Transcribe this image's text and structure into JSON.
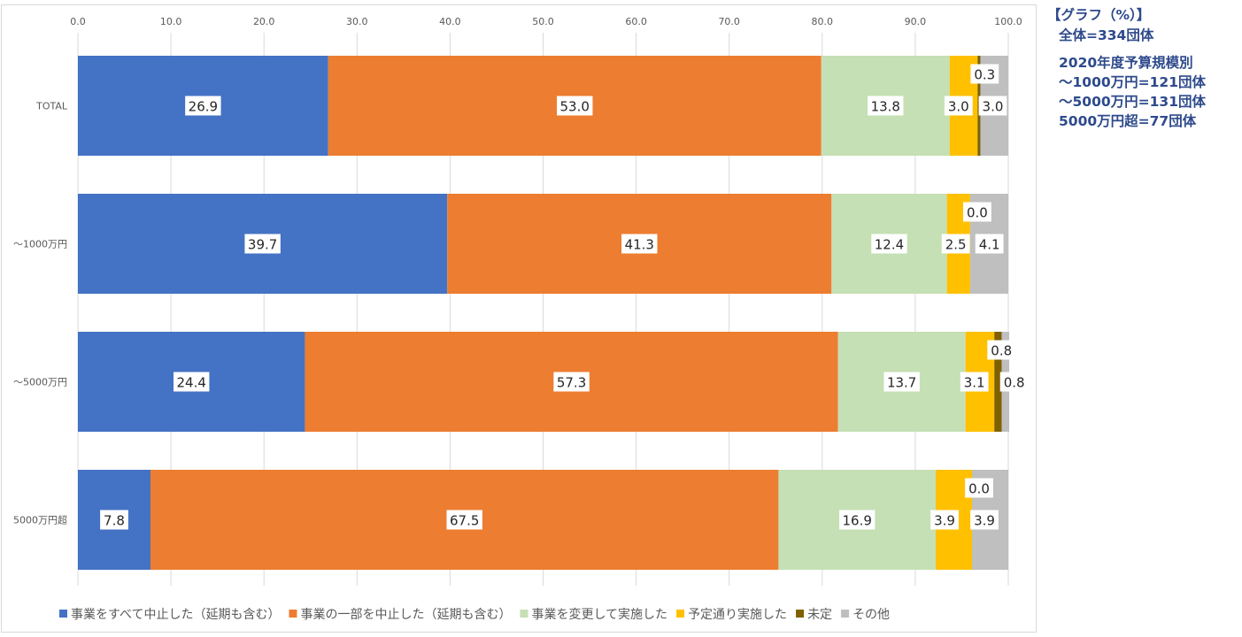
{
  "chart_data": {
    "type": "bar",
    "orientation": "horizontal",
    "stacked": true,
    "categories": [
      "TOTAL",
      "～1000万円",
      "～5000万円",
      "5000万円超"
    ],
    "series": [
      {
        "name": "事業をすべて中止した（延期も含む）",
        "values": [
          26.9,
          39.7,
          24.4,
          7.8
        ],
        "color": "#4472c4"
      },
      {
        "name": "事業の一部を中止した（延期も含む）",
        "values": [
          53.0,
          41.3,
          57.3,
          67.5
        ],
        "color": "#ed7d31"
      },
      {
        "name": "事業を変更して実施した",
        "values": [
          13.8,
          12.4,
          13.7,
          16.9
        ],
        "color": "#c5e0b4"
      },
      {
        "name": "予定通り実施した",
        "values": [
          3.0,
          2.5,
          3.1,
          3.9
        ],
        "color": "#ffc000"
      },
      {
        "name": "未定",
        "values": [
          0.3,
          0.0,
          0.8,
          0.0
        ],
        "color": "#7f6000"
      },
      {
        "name": "その他",
        "values": [
          3.0,
          4.1,
          0.8,
          3.9
        ],
        "color": "#bfbfbf"
      }
    ],
    "data_labels": [
      [
        "26.9",
        "53.0",
        "13.8",
        "3.0",
        "0.3",
        "3.0"
      ],
      [
        "39.7",
        "41.3",
        "12.4",
        "2.5",
        "0.0",
        "4.1"
      ],
      [
        "24.4",
        "57.3",
        "13.7",
        "3.1",
        "0.8",
        "0.8"
      ],
      [
        "7.8",
        "67.5",
        "16.9",
        "3.9",
        "0.0",
        "3.9"
      ]
    ],
    "xlim": [
      0,
      100
    ],
    "xticks": [
      "0.0",
      "10.0",
      "20.0",
      "30.0",
      "40.0",
      "50.0",
      "60.0",
      "70.0",
      "80.0",
      "90.0",
      "100.0"
    ],
    "x_axis_position": "top",
    "grid": true,
    "legend_position": "bottom"
  },
  "notes": {
    "title": "【グラフ（%）】",
    "total": "全体=334団体",
    "budget": [
      "2020年度予算規模別",
      "～1000万円=121団体",
      "～5000万円=131団体",
      "5000万円超=77団体"
    ]
  }
}
